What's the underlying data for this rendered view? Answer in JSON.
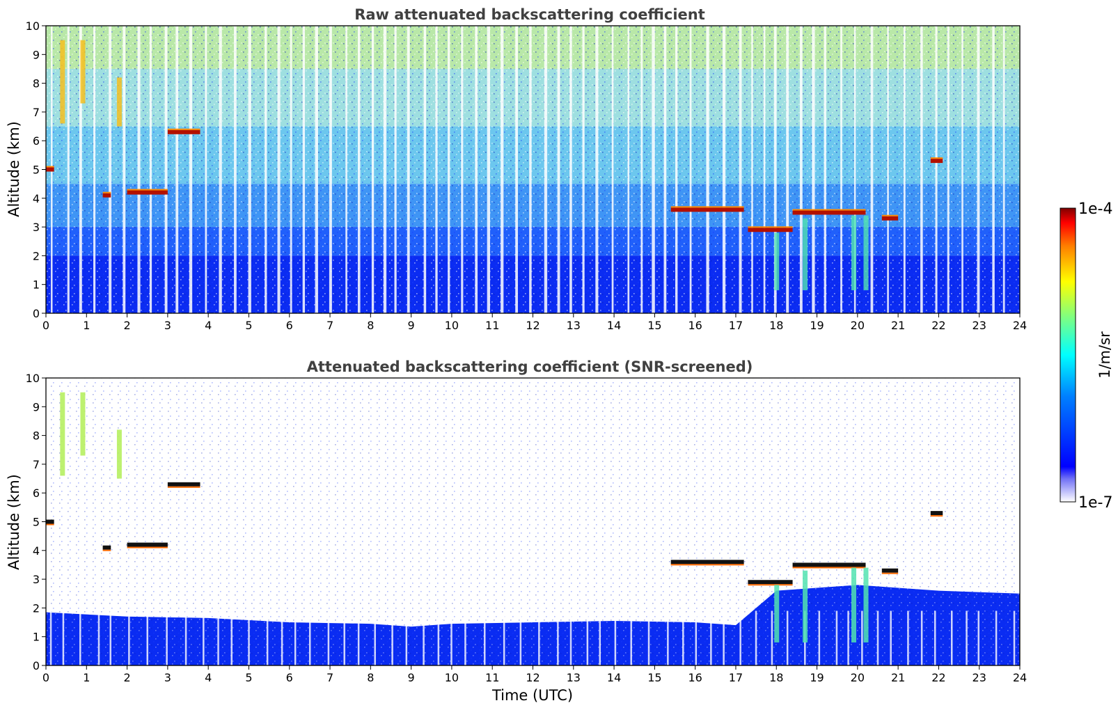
{
  "chart_data": [
    {
      "type": "heatmap",
      "title": "Raw attenuated backscattering coefficient",
      "xlabel": "",
      "ylabel": "Altitude (km)",
      "xlim": [
        0,
        24
      ],
      "ylim": [
        0,
        10
      ],
      "x_ticks": [
        "0",
        "1",
        "2",
        "3",
        "4",
        "5",
        "6",
        "7",
        "8",
        "9",
        "10",
        "11",
        "12",
        "13",
        "14",
        "15",
        "16",
        "17",
        "18",
        "19",
        "20",
        "21",
        "22",
        "23",
        "24"
      ],
      "y_ticks": [
        "0",
        "1",
        "2",
        "3",
        "4",
        "5",
        "6",
        "7",
        "8",
        "9",
        "10"
      ],
      "grid": false,
      "cloud_layers": [
        {
          "t_start": 0.0,
          "t_end": 0.2,
          "altitude_km": 5.0
        },
        {
          "t_start": 1.4,
          "t_end": 1.6,
          "altitude_km": 4.1
        },
        {
          "t_start": 2.0,
          "t_end": 3.0,
          "altitude_km": 4.2
        },
        {
          "t_start": 3.0,
          "t_end": 3.8,
          "altitude_km": 6.3
        },
        {
          "t_start": 15.4,
          "t_end": 17.2,
          "altitude_km": 3.6
        },
        {
          "t_start": 17.3,
          "t_end": 18.4,
          "altitude_km": 2.9
        },
        {
          "t_start": 18.4,
          "t_end": 20.2,
          "altitude_km": 3.5
        },
        {
          "t_start": 20.6,
          "t_end": 21.0,
          "altitude_km": 3.3
        },
        {
          "t_start": 21.8,
          "t_end": 22.1,
          "altitude_km": 5.3
        }
      ],
      "boundary_layer_top_km": 2.0
    },
    {
      "type": "heatmap",
      "title": "Attenuated backscattering coefficient (SNR-screened)",
      "xlabel": "Time (UTC)",
      "ylabel": "Altitude (km)",
      "xlim": [
        0,
        24
      ],
      "ylim": [
        0,
        10
      ],
      "x_ticks": [
        "0",
        "1",
        "2",
        "3",
        "4",
        "5",
        "6",
        "7",
        "8",
        "9",
        "10",
        "11",
        "12",
        "13",
        "14",
        "15",
        "16",
        "17",
        "18",
        "19",
        "20",
        "21",
        "22",
        "23",
        "24"
      ],
      "y_ticks": [
        "0",
        "1",
        "2",
        "3",
        "4",
        "5",
        "6",
        "7",
        "8",
        "9",
        "10"
      ],
      "grid": false,
      "boundary_layer_top": [
        {
          "t": 0,
          "km": 1.85
        },
        {
          "t": 2,
          "km": 1.7
        },
        {
          "t": 4,
          "km": 1.65
        },
        {
          "t": 6,
          "km": 1.5
        },
        {
          "t": 8,
          "km": 1.45
        },
        {
          "t": 9,
          "km": 1.35
        },
        {
          "t": 10,
          "km": 1.45
        },
        {
          "t": 12,
          "km": 1.5
        },
        {
          "t": 14,
          "km": 1.55
        },
        {
          "t": 16,
          "km": 1.5
        },
        {
          "t": 17,
          "km": 1.4
        },
        {
          "t": 18,
          "km": 2.6
        },
        {
          "t": 20,
          "km": 2.8
        },
        {
          "t": 21,
          "km": 2.7
        },
        {
          "t": 22,
          "km": 2.6
        },
        {
          "t": 24,
          "km": 2.5
        }
      ]
    }
  ],
  "colorbar": {
    "label": "1/m/sr",
    "max_label": "1e-4",
    "min_label": "1e-7",
    "scale": "log",
    "range": [
      1e-07,
      0.0001
    ],
    "colormap": "jet"
  }
}
